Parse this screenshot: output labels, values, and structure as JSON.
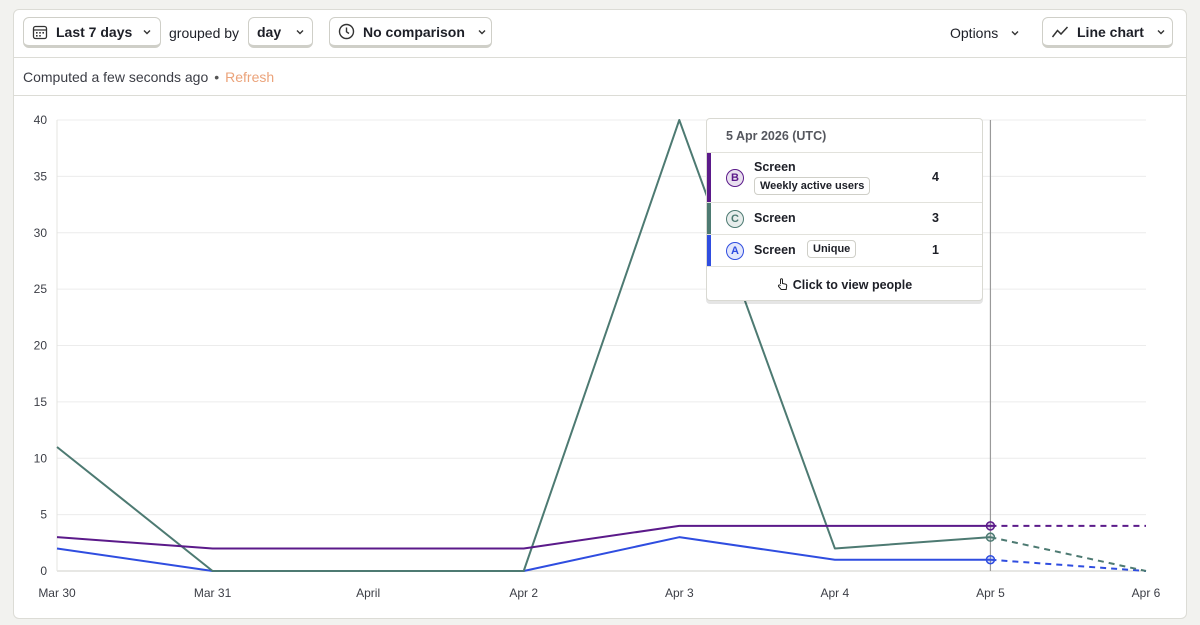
{
  "toolbar": {
    "date_range_label": "Last 7 days",
    "grouped_by_label": "grouped by",
    "interval_label": "day",
    "comparison_label": "No comparison",
    "options_label": "Options",
    "chart_type_label": "Line chart"
  },
  "status": {
    "computed_label": "Computed a few seconds ago",
    "separator": "•",
    "refresh_label": "Refresh"
  },
  "tooltip": {
    "date": "5 Apr 2026 (UTC)",
    "rows": [
      {
        "badge": "B",
        "name": "Screen",
        "tag": "Weekly active users",
        "value": "4",
        "color": "#5b1a8a"
      },
      {
        "badge": "C",
        "name": "Screen",
        "tag": "",
        "value": "3",
        "color": "#4d7a72"
      },
      {
        "badge": "A",
        "name": "Screen",
        "tag": "Unique",
        "value": "1",
        "color": "#2f4de0"
      }
    ],
    "footer": "Click to view people"
  },
  "chart_data": {
    "type": "line",
    "categories": [
      "Mar 30",
      "Mar 31",
      "April",
      "Apr 2",
      "Apr 3",
      "Apr 4",
      "Apr 5",
      "Apr 6"
    ],
    "y_ticks": [
      0,
      5,
      10,
      15,
      20,
      25,
      30,
      35,
      40
    ],
    "ylim": [
      0,
      40
    ],
    "grid": true,
    "hover_category": "Apr 5",
    "incomplete_from_index": 6,
    "series": [
      {
        "name": "Screen (Weekly active users)",
        "badge": "B",
        "color": "#5b1a8a",
        "values": [
          3,
          2,
          2,
          2,
          4,
          4,
          4,
          4
        ]
      },
      {
        "name": "Screen",
        "badge": "C",
        "color": "#4d7a72",
        "values": [
          11,
          0,
          0,
          0,
          40,
          2,
          3,
          0
        ]
      },
      {
        "name": "Screen (Unique)",
        "badge": "A",
        "color": "#2f4de0",
        "values": [
          2,
          0,
          0,
          0,
          3,
          1,
          1,
          0
        ]
      }
    ]
  }
}
